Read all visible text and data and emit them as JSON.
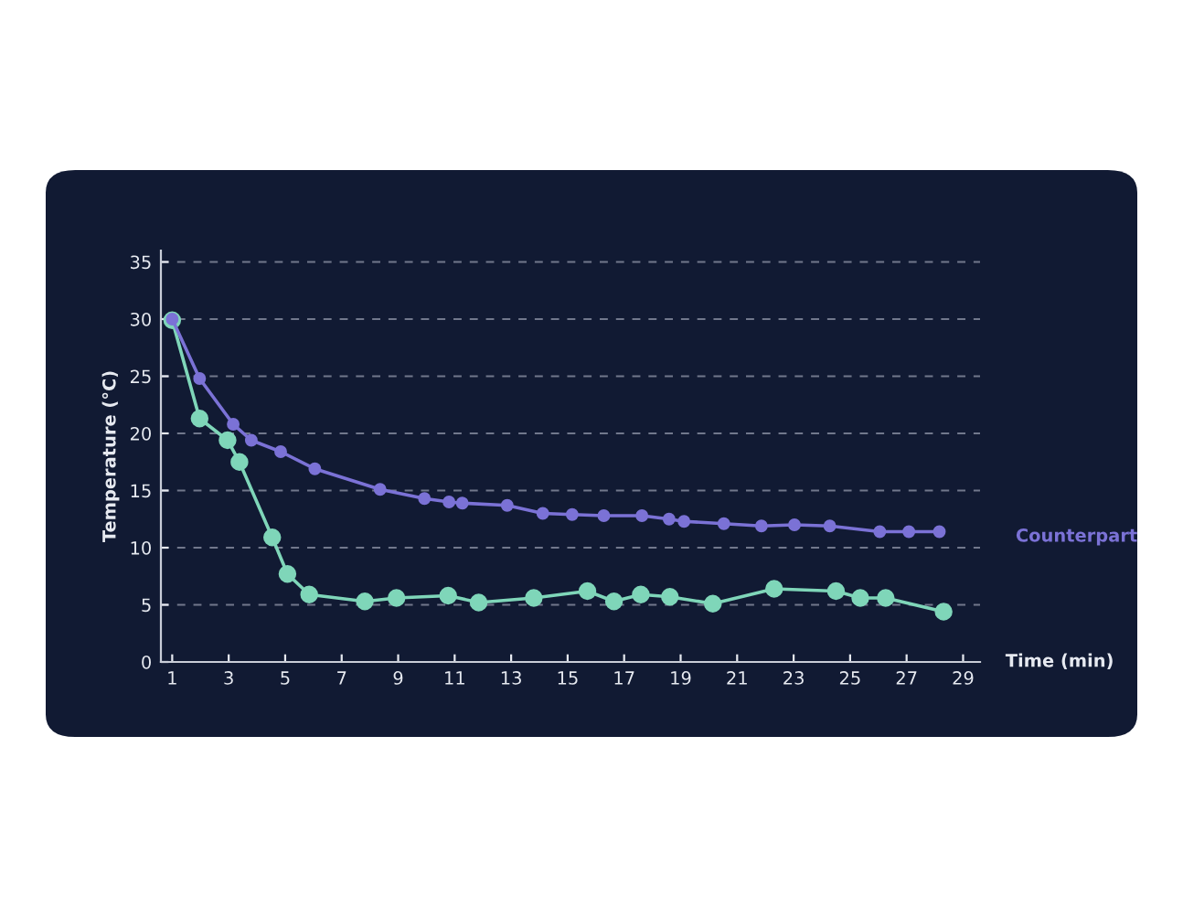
{
  "chart_data": {
    "type": "line",
    "xlabel": "Time (min)",
    "ylabel": "Temperature (°C)",
    "series": [
      {
        "name": "Counterpart",
        "color": "#7b72d6",
        "x": [
          1,
          1.97,
          3.16,
          3.8,
          4.84,
          6.05,
          8.36,
          9.93,
          10.8,
          11.27,
          12.86,
          14.12,
          15.16,
          16.28,
          17.63,
          18.59,
          19.12,
          20.53,
          21.86,
          23.03,
          24.28,
          26.05,
          27.08,
          28.16
        ],
        "values": [
          30,
          24.8,
          20.8,
          19.4,
          18.4,
          16.9,
          15.1,
          14.3,
          14.0,
          13.9,
          13.7,
          13.0,
          12.9,
          12.8,
          12.8,
          12.5,
          12.3,
          12.1,
          11.9,
          12.0,
          11.9,
          11.4,
          11.4,
          11.4
        ]
      },
      {
        "color": "#7fd6b9",
        "x": [
          1,
          1.97,
          2.96,
          3.38,
          4.54,
          5.08,
          5.85,
          7.82,
          8.94,
          10.77,
          11.85,
          13.8,
          15.7,
          16.64,
          17.59,
          18.62,
          20.14,
          22.31,
          24.5,
          25.36,
          26.26,
          28.31
        ],
        "values": [
          29.9,
          21.3,
          19.4,
          17.5,
          10.9,
          7.7,
          5.9,
          5.3,
          5.6,
          5.8,
          5.2,
          5.6,
          6.2,
          5.3,
          5.9,
          5.7,
          5.1,
          6.4,
          6.2,
          5.6,
          5.6,
          4.4
        ]
      }
    ],
    "xlim": [
      0.6,
      29.6
    ],
    "xticks": [
      1,
      3,
      5,
      7,
      9,
      11,
      13,
      15,
      17,
      19,
      21,
      23,
      25,
      27,
      29
    ],
    "ylim": [
      0,
      36
    ],
    "yticks": [
      0,
      5,
      10,
      15,
      20,
      25,
      30,
      35
    ],
    "grid": "y",
    "marker": "circle",
    "line_style": "solid",
    "legend": false
  }
}
